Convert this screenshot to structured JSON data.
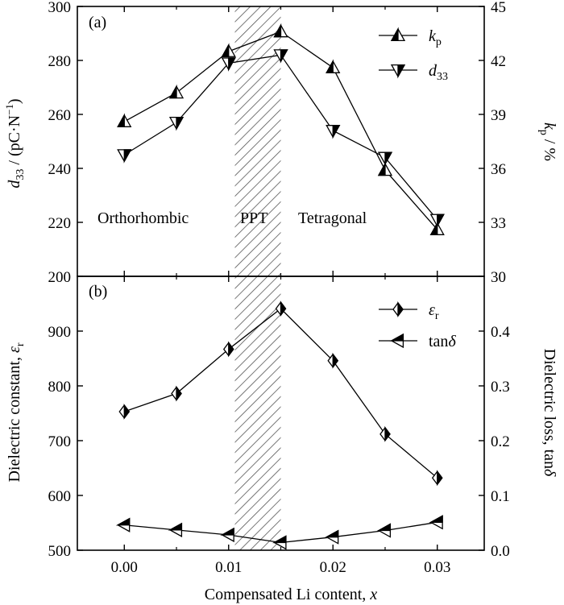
{
  "chart_data": [
    {
      "type": "line",
      "panel_label": "(a)",
      "x": [
        0.0,
        0.005,
        0.01,
        0.015,
        0.02,
        0.025,
        0.03
      ],
      "xlim": [
        -0.0045,
        0.0345
      ],
      "x_ticks": [
        "0.00",
        "0.01",
        "0.02",
        "0.03"
      ],
      "left_axis": {
        "label_main": "d",
        "label_sub": "33",
        "label_rest": " / (pC·N",
        "label_sup": "−1",
        "label_end": ")",
        "ylim": [
          200,
          300
        ],
        "ticks": [
          "200",
          "220",
          "240",
          "260",
          "280",
          "300"
        ]
      },
      "right_axis": {
        "label_main": "k",
        "label_sub": "p",
        "label_rest": " / %",
        "ylim": [
          30,
          45
        ],
        "ticks": [
          "30",
          "33",
          "36",
          "39",
          "42",
          "45"
        ]
      },
      "series": [
        {
          "name_main": "k",
          "name_sub": "p",
          "axis": "right",
          "marker": "triangle-up",
          "values": [
            38.6,
            40.2,
            42.5,
            43.6,
            41.6,
            35.9,
            32.6
          ]
        },
        {
          "name_main": "d",
          "name_sub": "33",
          "axis": "left",
          "marker": "triangle-down",
          "values": [
            245,
            257,
            279,
            282,
            254,
            244,
            221
          ]
        }
      ],
      "region_labels": [
        "Orthorhombic",
        "PPT",
        "Tetragonal"
      ],
      "shaded_region": [
        0.0106,
        0.015
      ]
    },
    {
      "type": "line",
      "panel_label": "(b)",
      "x": [
        0.0,
        0.005,
        0.01,
        0.015,
        0.02,
        0.025,
        0.03
      ],
      "xlim": [
        -0.0045,
        0.0345
      ],
      "x_ticks": [
        "0.00",
        "0.01",
        "0.02",
        "0.03"
      ],
      "xlabel": "Compensated Li content, ",
      "xlabel_var": "x",
      "left_axis": {
        "label_main": "Dielectric constant, ",
        "label_var": "ε",
        "label_sub": "r",
        "ylim": [
          500,
          1000
        ],
        "ticks": [
          "500",
          "600",
          "700",
          "800",
          "900"
        ]
      },
      "right_axis": {
        "label_main": "Dielectric loss, tan",
        "label_var": "δ",
        "ylim": [
          0.0,
          0.5
        ],
        "ticks": [
          "0.0",
          "0.1",
          "0.2",
          "0.3",
          "0.4"
        ]
      },
      "series": [
        {
          "name_main": "ε",
          "name_sub": "r",
          "axis": "left",
          "marker": "diamond-half",
          "values": [
            753,
            786,
            867,
            941,
            846,
            712,
            632
          ]
        },
        {
          "name_main": "tan",
          "name_var": "δ",
          "axis": "right",
          "marker": "triangle-left-half",
          "values": [
            0.046,
            0.037,
            0.028,
            0.014,
            0.024,
            0.036,
            0.051
          ]
        }
      ],
      "shaded_region": [
        0.0106,
        0.015
      ]
    }
  ]
}
